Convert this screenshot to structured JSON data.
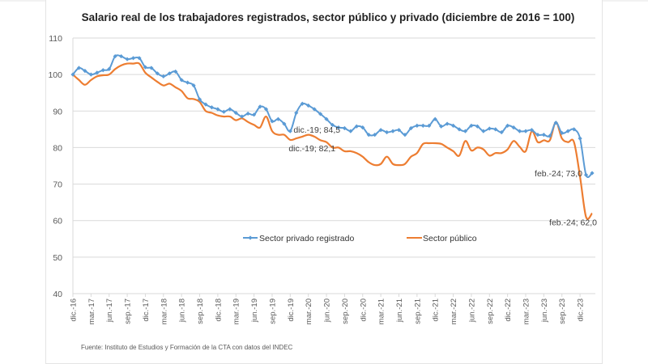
{
  "chart_data": {
    "type": "line",
    "title": "Salario real de los trabajadores registrados, sector público y privado (diciembre de 2016 = 100)",
    "xlabel": "",
    "ylabel": "",
    "ylim": [
      40,
      110
    ],
    "yticks": [
      40,
      50,
      60,
      70,
      80,
      90,
      100,
      110
    ],
    "grid": true,
    "legend_position": "inside-center",
    "x_tick_labels": [
      "dic.-16",
      "mar.-17",
      "jun.-17",
      "sep.-17",
      "dic.-17",
      "mar.-18",
      "jun.-18",
      "sep.-18",
      "dic.-18",
      "mar.-19",
      "jun.-19",
      "sep.-19",
      "dic.-19",
      "mar.-20",
      "jun.-20",
      "sep.-20",
      "dic.-20",
      "mar.-21",
      "jun.-21",
      "sep.-21",
      "dic.-21",
      "mar.-22",
      "jun.-22",
      "sep.-22",
      "dic.-22",
      "mar.-23",
      "jun.-23",
      "sep.-23",
      "dic.-23"
    ],
    "x_start": "dic.-16",
    "x_end": "feb.-24",
    "x_frequency": "monthly",
    "series": [
      {
        "name": "Sector privado registrado",
        "color": "#5b9bd5",
        "marker": "diamond",
        "values": [
          100,
          101.8,
          101,
          100,
          100.5,
          101.2,
          101.5,
          105,
          105,
          104.2,
          104.5,
          104.5,
          102,
          101.8,
          100.3,
          99.5,
          100.3,
          100.8,
          98.5,
          97.8,
          97,
          93.2,
          91.8,
          91,
          90.5,
          89.8,
          90.5,
          89.5,
          88.5,
          89.3,
          89,
          91.2,
          90.5,
          87.2,
          87.8,
          86.5,
          84.5,
          89.5,
          92,
          91.5,
          90.5,
          89.2,
          87.8,
          86.2,
          85.5,
          85.3,
          84.5,
          85.8,
          85.5,
          83.5,
          83.5,
          84.8,
          84.2,
          84.5,
          84.8,
          83.5,
          85.3,
          86,
          86,
          86,
          87.8,
          85.8,
          86.5,
          86,
          85,
          84.5,
          86,
          85.8,
          84.5,
          85.2,
          85,
          84.2,
          86,
          85.5,
          84.5,
          84.5,
          84.8,
          83.5,
          83.5,
          83.2,
          86.8,
          84,
          84.5,
          85,
          82.5,
          72.5,
          73.0
        ]
      },
      {
        "name": "Sector público",
        "color": "#ed7d31",
        "marker": "none",
        "values": [
          100,
          98.5,
          97.2,
          98.5,
          99.5,
          99.8,
          100,
          101.5,
          102.5,
          103,
          103,
          103,
          100.5,
          99.2,
          98,
          97,
          97.5,
          96.5,
          95.5,
          93.5,
          93.3,
          92.5,
          90,
          89.5,
          88.8,
          88.5,
          88.5,
          87.5,
          88,
          87,
          86.2,
          85.5,
          88.5,
          84.5,
          83.5,
          83.5,
          82.1,
          82.5,
          83,
          83.5,
          83,
          82,
          81.5,
          80,
          80,
          79,
          79,
          78.5,
          77.5,
          76,
          75.2,
          75.5,
          77.5,
          75.5,
          75.2,
          75.5,
          77.5,
          78.5,
          81,
          81.2,
          81.2,
          81,
          80,
          79,
          77.8,
          81.8,
          79.2,
          80,
          79.5,
          77.8,
          78.5,
          78.5,
          79.5,
          81.8,
          80.2,
          79,
          84.5,
          81.5,
          82,
          82,
          87,
          82.5,
          81.5,
          81.5,
          72,
          61,
          62.0
        ]
      }
    ],
    "annotations": [
      {
        "text": "dic.-19; 84,5",
        "series": "Sector privado registrado",
        "x": "dic.-19",
        "y": 84.5
      },
      {
        "text": "dic.-19; 82,1",
        "series": "Sector público",
        "x": "dic.-19",
        "y": 82.1
      },
      {
        "text": "feb.-24; 73,0",
        "series": "Sector privado registrado",
        "x": "feb.-24",
        "y": 73.0
      },
      {
        "text": "feb.-24; 62,0",
        "series": "Sector público",
        "x": "feb.-24",
        "y": 62.0
      }
    ],
    "source": "Fuente: Instituto de Estudios y Formación de la CTA con datos del INDEC"
  }
}
